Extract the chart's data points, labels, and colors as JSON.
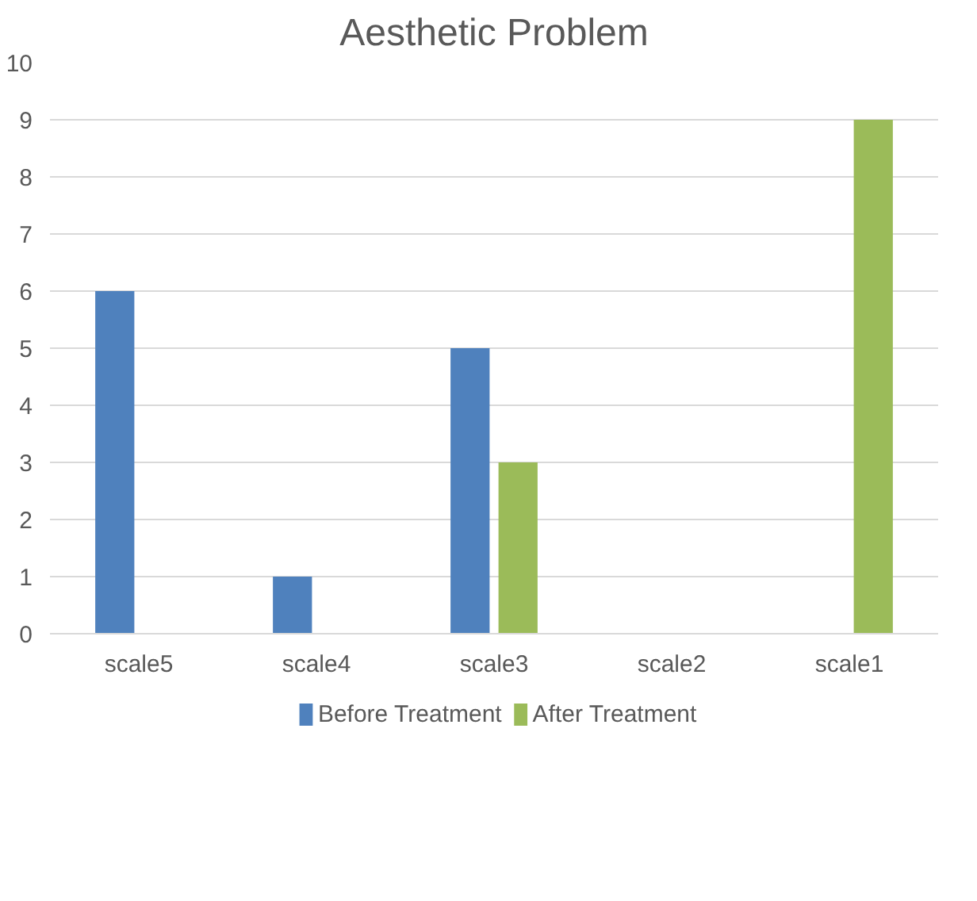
{
  "chart_data": {
    "type": "bar",
    "title": "Aesthetic Problem",
    "categories": [
      "scale5",
      "scale4",
      "scale3",
      "scale2",
      "scale1"
    ],
    "series": [
      {
        "name": "Before Treatment",
        "color": "#4f81bd",
        "values": [
          6,
          1,
          5,
          0,
          0
        ]
      },
      {
        "name": "After Treatment",
        "color": "#9bbb59",
        "values": [
          0,
          0,
          3,
          0,
          9
        ]
      }
    ],
    "ylim": [
      0,
      10
    ],
    "yticks": [
      0,
      1,
      2,
      3,
      4,
      5,
      6,
      7,
      8,
      9,
      10
    ],
    "grid": "y",
    "legend": "bottom"
  }
}
